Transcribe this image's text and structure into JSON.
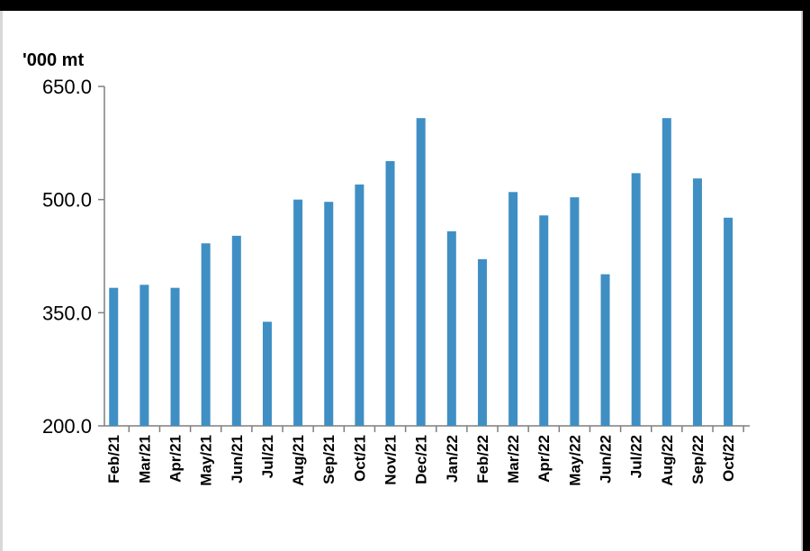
{
  "chart_data": {
    "type": "bar",
    "unit_label": "'000 mt",
    "categories": [
      "Feb/21",
      "Mar/21",
      "Apr/21",
      "May/21",
      "Jun/21",
      "Jul/21",
      "Aug/21",
      "Sep/21",
      "Oct/21",
      "Nov/21",
      "Dec/21",
      "Jan/22",
      "Feb/22",
      "Mar/22",
      "Apr/22",
      "May/22",
      "Jun/22",
      "Jul/22",
      "Aug/22",
      "Sep/22",
      "Oct/22"
    ],
    "values": [
      383,
      387,
      383,
      442,
      452,
      338,
      500,
      497,
      520,
      551,
      608,
      458,
      421,
      510,
      479,
      503,
      401,
      535,
      608,
      528,
      476
    ],
    "yticks": [
      "650.0",
      "500.0",
      "350.0",
      "200.0"
    ],
    "ylim": [
      200,
      650
    ],
    "bar_color": "#3f8fc4",
    "grid": false
  }
}
